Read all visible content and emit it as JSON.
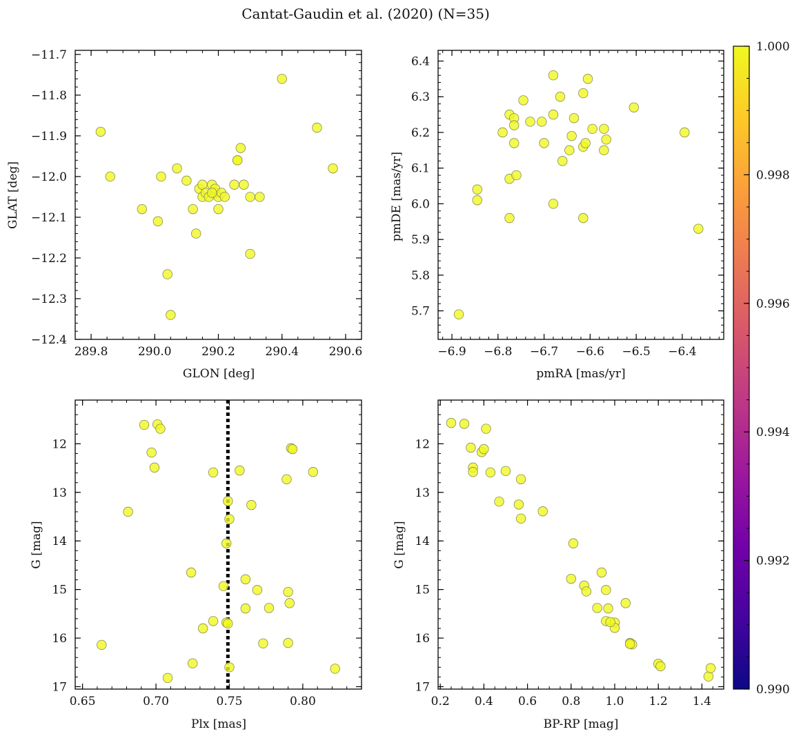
{
  "figure": {
    "title": "Cantat-Gaudin et al. (2020) (N=35)",
    "point_color": "#f0f921",
    "point_edge_color": "#8a8a55"
  },
  "colorbar": {
    "min": 0.99,
    "max": 1.0,
    "tick_values": [
      0.99,
      0.992,
      0.994,
      0.996,
      0.998,
      1.0
    ],
    "tick_labels": [
      "0.990",
      "0.992",
      "0.994",
      "0.996",
      "0.998",
      "1.000"
    ],
    "colors": [
      "#0d0887",
      "#46039f",
      "#7201a8",
      "#9c179e",
      "#bd3786",
      "#d8576b",
      "#ed7953",
      "#fb9f3a",
      "#fdca26",
      "#f0f921"
    ]
  },
  "chart_data": [
    {
      "type": "scatter",
      "id": "glon-glat",
      "xlabel": "GLON [deg]",
      "ylabel": "GLAT [deg]",
      "xlim": [
        289.75,
        290.65
      ],
      "ylim": [
        -12.4,
        -11.69
      ],
      "y_inverted": false,
      "xticks": [
        289.8,
        290.0,
        290.2,
        290.4,
        290.6
      ],
      "xtick_labels": [
        "289.8",
        "290.0",
        "290.2",
        "290.4",
        "290.6"
      ],
      "yticks": [
        -11.7,
        -11.8,
        -11.9,
        -12.0,
        -12.1,
        -12.2,
        -12.3,
        -12.4
      ],
      "ytick_labels": [
        "−11.7",
        "−11.8",
        "−11.9",
        "−12.0",
        "−12.1",
        "−12.2",
        "−12.3",
        "−12.4"
      ],
      "x_minor_step": 0.05,
      "y_minor_step": 0.02,
      "points": [
        [
          289.83,
          -11.89
        ],
        [
          289.86,
          -12.0
        ],
        [
          289.96,
          -12.08
        ],
        [
          290.01,
          -12.11
        ],
        [
          290.02,
          -12.0
        ],
        [
          290.04,
          -12.24
        ],
        [
          290.05,
          -12.34
        ],
        [
          290.07,
          -11.98
        ],
        [
          290.1,
          -12.01
        ],
        [
          290.12,
          -12.08
        ],
        [
          290.13,
          -12.14
        ],
        [
          290.14,
          -12.03
        ],
        [
          290.15,
          -12.02
        ],
        [
          290.15,
          -12.05
        ],
        [
          290.16,
          -12.04
        ],
        [
          290.17,
          -12.05
        ],
        [
          290.18,
          -12.02
        ],
        [
          290.19,
          -12.04
        ],
        [
          290.19,
          -12.03
        ],
        [
          290.2,
          -12.08
        ],
        [
          290.2,
          -12.05
        ],
        [
          290.21,
          -12.04
        ],
        [
          290.22,
          -12.05
        ],
        [
          290.25,
          -12.02
        ],
        [
          290.26,
          -11.96
        ],
        [
          290.26,
          -11.96
        ],
        [
          290.27,
          -11.93
        ],
        [
          290.28,
          -12.02
        ],
        [
          290.3,
          -12.05
        ],
        [
          290.3,
          -12.19
        ],
        [
          290.33,
          -12.05
        ],
        [
          290.4,
          -11.76
        ],
        [
          290.51,
          -11.88
        ],
        [
          290.56,
          -11.98
        ],
        [
          290.18,
          -12.04
        ]
      ]
    },
    {
      "type": "scatter",
      "id": "pmra-pmde",
      "xlabel": "pmRA [mas/yr]",
      "ylabel": "pmDE [mas/yr]",
      "xlim": [
        -6.93,
        -6.31
      ],
      "ylim": [
        5.62,
        6.43
      ],
      "y_inverted": false,
      "xticks": [
        -6.9,
        -6.8,
        -6.7,
        -6.6,
        -6.5,
        -6.4
      ],
      "xtick_labels": [
        "−6.9",
        "−6.8",
        "−6.7",
        "−6.6",
        "−6.5",
        "−6.4"
      ],
      "yticks": [
        5.7,
        5.8,
        5.9,
        6.0,
        6.1,
        6.2,
        6.3,
        6.4
      ],
      "ytick_labels": [
        "5.7",
        "5.8",
        "5.9",
        "6.0",
        "6.1",
        "6.2",
        "6.3",
        "6.4"
      ],
      "x_minor_step": 0.02,
      "y_minor_step": 0.02,
      "points": [
        [
          -6.885,
          5.69
        ],
        [
          -6.845,
          6.04
        ],
        [
          -6.845,
          6.01
        ],
        [
          -6.79,
          6.2
        ],
        [
          -6.775,
          6.25
        ],
        [
          -6.775,
          6.07
        ],
        [
          -6.775,
          5.96
        ],
        [
          -6.765,
          6.24
        ],
        [
          -6.765,
          6.22
        ],
        [
          -6.765,
          6.17
        ],
        [
          -6.76,
          6.08
        ],
        [
          -6.745,
          6.29
        ],
        [
          -6.73,
          6.23
        ],
        [
          -6.705,
          6.23
        ],
        [
          -6.7,
          6.17
        ],
        [
          -6.68,
          6.36
        ],
        [
          -6.68,
          6.25
        ],
        [
          -6.68,
          6.0
        ],
        [
          -6.665,
          6.3
        ],
        [
          -6.66,
          6.12
        ],
        [
          -6.645,
          6.15
        ],
        [
          -6.64,
          6.19
        ],
        [
          -6.635,
          6.24
        ],
        [
          -6.615,
          6.31
        ],
        [
          -6.615,
          6.16
        ],
        [
          -6.615,
          5.96
        ],
        [
          -6.61,
          6.17
        ],
        [
          -6.605,
          6.35
        ],
        [
          -6.595,
          6.21
        ],
        [
          -6.57,
          6.21
        ],
        [
          -6.57,
          6.15
        ],
        [
          -6.565,
          6.18
        ],
        [
          -6.505,
          6.27
        ],
        [
          -6.395,
          6.2
        ],
        [
          -6.365,
          5.93
        ]
      ]
    },
    {
      "type": "scatter",
      "id": "plx-g",
      "xlabel": "Plx [mas]",
      "ylabel": "G [mag]",
      "xlim": [
        0.645,
        0.84
      ],
      "ylim": [
        17.05,
        11.1
      ],
      "y_inverted": true,
      "xticks": [
        0.65,
        0.7,
        0.75,
        0.8
      ],
      "xtick_labels": [
        "0.65",
        "0.70",
        "0.75",
        "0.80"
      ],
      "yticks": [
        12,
        13,
        14,
        15,
        16,
        17
      ],
      "ytick_labels": [
        "12",
        "13",
        "14",
        "15",
        "16",
        "17"
      ],
      "x_minor_step": 0.01,
      "y_minor_step": 0.2,
      "reference_line": {
        "x": 0.749,
        "style": "dotted",
        "color": "#000000"
      },
      "points": [
        [
          0.692,
          11.61
        ],
        [
          0.701,
          11.6
        ],
        [
          0.703,
          11.69
        ],
        [
          0.697,
          12.18
        ],
        [
          0.699,
          12.49
        ],
        [
          0.681,
          13.4
        ],
        [
          0.663,
          16.14
        ],
        [
          0.708,
          16.82
        ],
        [
          0.724,
          14.65
        ],
        [
          0.725,
          16.52
        ],
        [
          0.732,
          15.8
        ],
        [
          0.739,
          12.59
        ],
        [
          0.739,
          15.65
        ],
        [
          0.746,
          14.93
        ],
        [
          0.748,
          15.68
        ],
        [
          0.748,
          14.05
        ],
        [
          0.749,
          13.18
        ],
        [
          0.75,
          13.55
        ],
        [
          0.75,
          16.6
        ],
        [
          0.749,
          15.7
        ],
        [
          0.757,
          12.55
        ],
        [
          0.761,
          14.79
        ],
        [
          0.761,
          15.39
        ],
        [
          0.765,
          13.26
        ],
        [
          0.769,
          15.01
        ],
        [
          0.773,
          16.11
        ],
        [
          0.777,
          15.38
        ],
        [
          0.789,
          12.73
        ],
        [
          0.79,
          15.05
        ],
        [
          0.79,
          16.1
        ],
        [
          0.791,
          15.28
        ],
        [
          0.792,
          12.09
        ],
        [
          0.793,
          12.11
        ],
        [
          0.807,
          12.58
        ],
        [
          0.822,
          16.63
        ]
      ]
    },
    {
      "type": "scatter",
      "id": "bprp-g",
      "xlabel": "BP-RP [mag]",
      "ylabel": "G [mag]",
      "xlim": [
        0.19,
        1.5
      ],
      "ylim": [
        17.05,
        11.1
      ],
      "y_inverted": true,
      "xticks": [
        0.2,
        0.4,
        0.6,
        0.8,
        1.0,
        1.2,
        1.4
      ],
      "xtick_labels": [
        "0.2",
        "0.4",
        "0.6",
        "0.8",
        "1.0",
        "1.2",
        "1.4"
      ],
      "yticks": [
        12,
        13,
        14,
        15,
        16,
        17
      ],
      "ytick_labels": [
        "12",
        "13",
        "14",
        "15",
        "16",
        "17"
      ],
      "x_minor_step": 0.05,
      "y_minor_step": 0.2,
      "points": [
        [
          0.25,
          11.57
        ],
        [
          0.31,
          11.59
        ],
        [
          0.34,
          12.08
        ],
        [
          0.35,
          12.49
        ],
        [
          0.35,
          12.58
        ],
        [
          0.39,
          12.17
        ],
        [
          0.4,
          12.11
        ],
        [
          0.41,
          11.69
        ],
        [
          0.43,
          12.59
        ],
        [
          0.47,
          13.19
        ],
        [
          0.5,
          12.56
        ],
        [
          0.56,
          13.25
        ],
        [
          0.57,
          12.73
        ],
        [
          0.57,
          13.54
        ],
        [
          0.67,
          13.39
        ],
        [
          0.8,
          14.78
        ],
        [
          0.81,
          14.05
        ],
        [
          0.86,
          14.92
        ],
        [
          0.87,
          15.04
        ],
        [
          0.92,
          15.38
        ],
        [
          0.94,
          14.65
        ],
        [
          0.96,
          15.01
        ],
        [
          0.96,
          15.65
        ],
        [
          0.97,
          15.39
        ],
        [
          1.0,
          15.68
        ],
        [
          1.0,
          15.79
        ],
        [
          1.05,
          15.28
        ],
        [
          1.07,
          16.1
        ],
        [
          1.08,
          16.13
        ],
        [
          1.2,
          16.53
        ],
        [
          1.21,
          16.58
        ],
        [
          1.43,
          16.79
        ],
        [
          1.44,
          16.62
        ],
        [
          0.98,
          15.67
        ],
        [
          1.07,
          16.12
        ]
      ]
    }
  ]
}
